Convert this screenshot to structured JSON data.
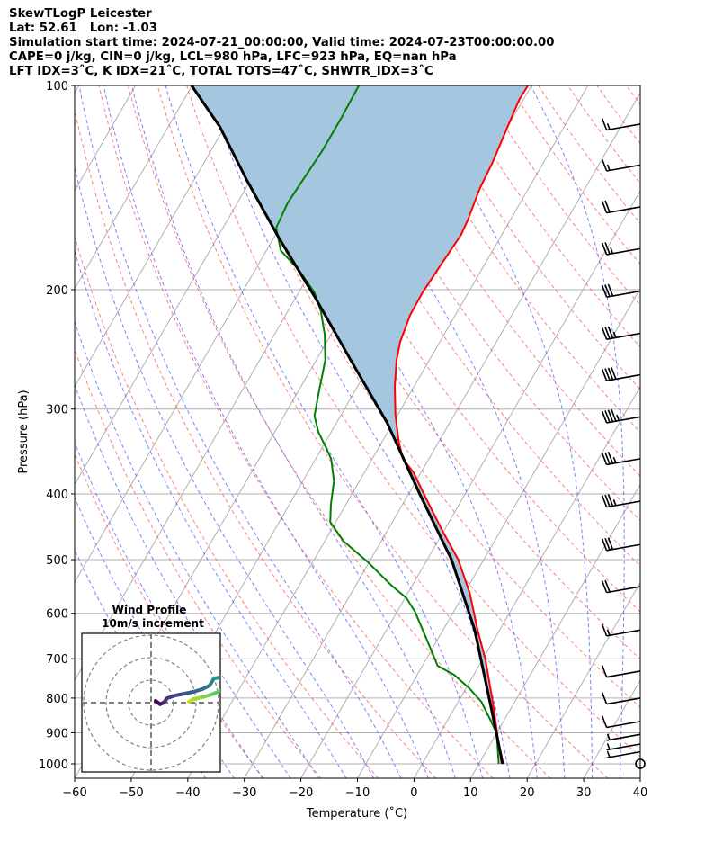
{
  "header": {
    "line1": "SkewTLogP Leicester",
    "line2": "Lat: 52.61   Lon: -1.03",
    "line3": "Simulation start time: 2024-07-21_00:00:00, Valid time: 2024-07-23T00:00:00.00",
    "line4": "CAPE=0 j/kg, CIN=0 j/kg, LCL=980 hPa, LFC=923 hPa, EQ=nan hPa",
    "line5": "LFT IDX=3˚C, K IDX=21˚C, TOTAL TOTS=47˚C, SHWTR_IDX=3˚C"
  },
  "chart_data": {
    "type": "line",
    "title": "SkewTLogP Leicester",
    "xlabel": "Temperature (˚C)",
    "ylabel": "Pressure (hPa)",
    "xlim": [
      -60,
      40
    ],
    "ylim": [
      1050,
      100
    ],
    "yscale": "log",
    "skew": true,
    "grid": true,
    "xticks": [
      -60,
      -50,
      -40,
      -30,
      -20,
      -10,
      0,
      10,
      20,
      30,
      40
    ],
    "xtick_labels": [
      "−60",
      "−50",
      "−40",
      "−30",
      "−20",
      "−10",
      "0",
      "10",
      "20",
      "30",
      "40"
    ],
    "yticks": [
      100,
      200,
      300,
      400,
      500,
      600,
      700,
      800,
      900,
      1000
    ],
    "ytick_labels": [
      "100",
      "200",
      "300",
      "400",
      "500",
      "600",
      "700",
      "800",
      "900",
      "1000"
    ],
    "series": [
      {
        "name": "temperature",
        "color": "#ff0000",
        "pressure": [
          1000,
          901,
          810,
          702,
          635,
          561,
          500,
          453,
          408,
          372,
          355,
          334,
          305,
          278,
          254,
          239,
          218,
          202,
          184,
          166,
          158,
          142,
          130,
          115,
          105,
          100
        ],
        "values": [
          14.0,
          10.1,
          6.1,
          0.5,
          -3.9,
          -9.0,
          -14.5,
          -20.3,
          -26.2,
          -31.3,
          -34.6,
          -37.2,
          -40.5,
          -43.4,
          -45.8,
          -47.0,
          -48.0,
          -48.1,
          -47.7,
          -47.2,
          -47.5,
          -48.6,
          -49.0,
          -50.0,
          -50.7,
          -50.6
        ]
      },
      {
        "name": "dewpoint",
        "color": "#008000",
        "pressure": [
          1000,
          901,
          861,
          810,
          774,
          739,
          717,
          674,
          635,
          597,
          570,
          545,
          505,
          470,
          440,
          414,
          383,
          355,
          339,
          324,
          307,
          287,
          270,
          254,
          233,
          215,
          202,
          187,
          175,
          162,
          149,
          136,
          124,
          111,
          100
        ],
        "values": [
          13.5,
          10.0,
          7.5,
          4.1,
          0.6,
          -3.5,
          -7.3,
          -10.5,
          -13.6,
          -16.8,
          -19.7,
          -23.8,
          -30.1,
          -36.6,
          -41.0,
          -42.7,
          -44.5,
          -47.3,
          -49.8,
          -52.3,
          -54.6,
          -56.0,
          -57.2,
          -58.4,
          -61.1,
          -64.2,
          -67.2,
          -72.3,
          -77.5,
          -80.6,
          -81.1,
          -80.7,
          -80.3,
          -80.3,
          -80.5
        ]
      },
      {
        "name": "parcel-profile",
        "color": "#000000",
        "pressure": [
          1000,
          810,
          635,
          500,
          401,
          314,
          254,
          205,
          168,
          138,
          115,
          100
        ],
        "values": [
          14.2,
          5.6,
          -4.4,
          -15.7,
          -27.9,
          -41.1,
          -53.9,
          -66.7,
          -79.0,
          -90.6,
          -100.9,
          -110.1
        ]
      }
    ],
    "shading": {
      "between": [
        "parcel-profile",
        "temperature"
      ],
      "color": "#a4c6de"
    },
    "wind_barbs": {
      "pressure": [
        114,
        131,
        151,
        174,
        201,
        232,
        267,
        308,
        355,
        410,
        475,
        548,
        635,
        730,
        800,
        866,
        905,
        935,
        960
      ],
      "speed_kt": [
        15,
        15,
        20,
        25,
        30,
        35,
        40,
        45,
        35,
        35,
        30,
        20,
        15,
        10,
        10,
        10,
        5,
        5,
        5
      ],
      "calm_pressure": 1000
    },
    "hodograph": {
      "title": "Wind Profile",
      "subtitle": "10m/s increment",
      "ring_step_ms": 10,
      "rings": [
        10,
        20,
        30
      ],
      "segments": [
        {
          "u": [
            2.0,
            4.0,
            5.6,
            7.2,
            10.8,
            14.8,
            18.8,
            22.8,
            26.0,
            28.0,
            30.8
          ],
          "v": [
            0.8,
            -0.7,
            0.0,
            2.0,
            3.2,
            4.0,
            4.8,
            6.0,
            7.6,
            10.8,
            11.2
          ],
          "colors": [
            "#440154",
            "#472d7b",
            "#3b528b",
            "#2c728e",
            "#21918c"
          ]
        },
        {
          "u": [
            16.8,
            18.8,
            22.8,
            26.8,
            30.8
          ],
          "v": [
            0.4,
            1.6,
            2.4,
            3.6,
            5.2
          ],
          "colors": [
            "#c2df23",
            "#5ec962"
          ]
        }
      ]
    }
  }
}
